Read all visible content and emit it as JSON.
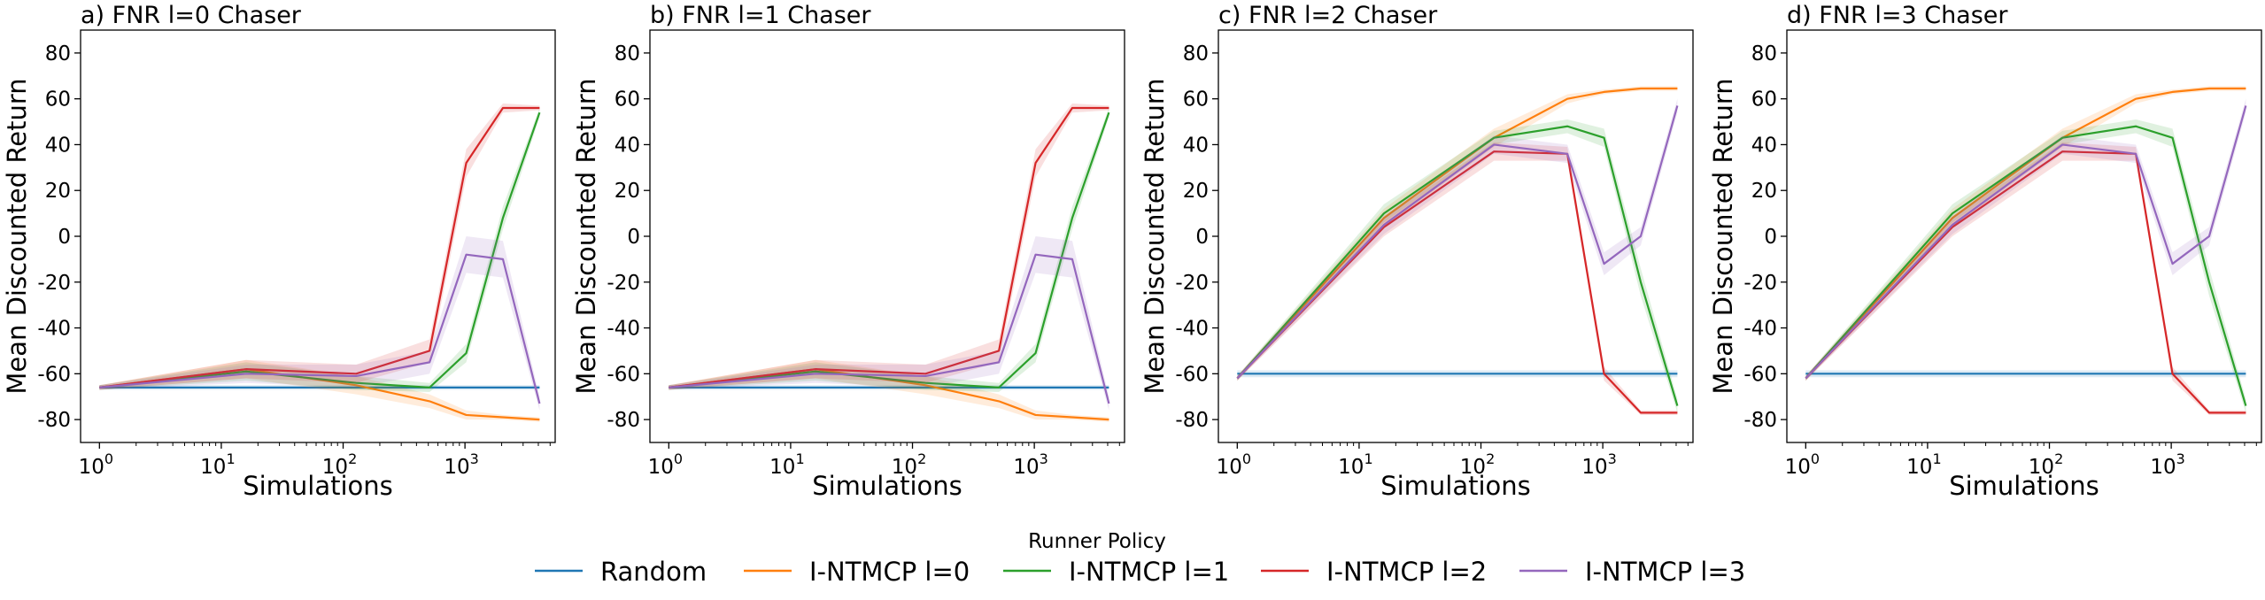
{
  "chart_data": {
    "type": "line",
    "xlabel": "Simulations",
    "ylabel": "Mean Discounted Return",
    "xscale": "log",
    "xlim": [
      0.7,
      5500
    ],
    "ylim": [
      -90,
      90
    ],
    "xticks": [
      {
        "value": 1,
        "base": "10",
        "exp": "0"
      },
      {
        "value": 10,
        "base": "10",
        "exp": "1"
      },
      {
        "value": 100,
        "base": "10",
        "exp": "2"
      },
      {
        "value": 1000,
        "base": "10",
        "exp": "3"
      }
    ],
    "yticks": [
      "-80",
      "-60",
      "-40",
      "-20",
      "0",
      "20",
      "40",
      "60",
      "80"
    ],
    "x": [
      1,
      16,
      128,
      512,
      1024,
      2048,
      4096
    ],
    "legend": {
      "title": "Runner Policy",
      "placement": "bottom-center",
      "entries": [
        "Random",
        "I-NTMCP l=0",
        "I-NTMCP l=1",
        "I-NTMCP l=2",
        "I-NTMCP l=3"
      ]
    },
    "colors": [
      "#1f77b4",
      "#ff7f0e",
      "#2ca02c",
      "#d62728",
      "#9467bd"
    ],
    "panels": [
      {
        "title": "a) FNR l=0 Chaser",
        "series": [
          {
            "name": "Random",
            "values": [
              -66,
              -66,
              -66,
              -66,
              -66,
              -66,
              -66
            ],
            "band": [
              1,
              1,
              1,
              1,
              1,
              1,
              1
            ]
          },
          {
            "name": "I-NTMCP l=0",
            "values": [
              -66,
              -58,
              -65,
              -72,
              -78,
              -79,
              -80
            ],
            "band": [
              1,
              4,
              4,
              3,
              2,
              1,
              1
            ]
          },
          {
            "name": "I-NTMCP l=1",
            "values": [
              -66,
              -59,
              -64,
              -66,
              -51,
              8,
              54
            ],
            "band": [
              1,
              4,
              3,
              2,
              4,
              5,
              2
            ]
          },
          {
            "name": "I-NTMCP l=2",
            "values": [
              -66,
              -58,
              -60,
              -50,
              32,
              56,
              56
            ],
            "band": [
              1,
              4,
              4,
              5,
              6,
              2,
              1
            ]
          },
          {
            "name": "I-NTMCP l=3",
            "values": [
              -66,
              -60,
              -61,
              -55,
              -8,
              -10,
              -73
            ],
            "band": [
              1,
              4,
              5,
              5,
              8,
              8,
              3
            ]
          }
        ]
      },
      {
        "title": "b) FNR l=1 Chaser",
        "series": [
          {
            "name": "Random",
            "values": [
              -66,
              -66,
              -66,
              -66,
              -66,
              -66,
              -66
            ],
            "band": [
              1,
              1,
              1,
              1,
              1,
              1,
              1
            ]
          },
          {
            "name": "I-NTMCP l=0",
            "values": [
              -66,
              -58,
              -65,
              -72,
              -78,
              -79,
              -80
            ],
            "band": [
              1,
              4,
              4,
              3,
              2,
              1,
              1
            ]
          },
          {
            "name": "I-NTMCP l=1",
            "values": [
              -66,
              -59,
              -64,
              -66,
              -51,
              8,
              54
            ],
            "band": [
              1,
              4,
              3,
              2,
              4,
              5,
              2
            ]
          },
          {
            "name": "I-NTMCP l=2",
            "values": [
              -66,
              -58,
              -60,
              -50,
              32,
              56,
              56
            ],
            "band": [
              1,
              4,
              4,
              5,
              6,
              2,
              1
            ]
          },
          {
            "name": "I-NTMCP l=3",
            "values": [
              -66,
              -60,
              -61,
              -55,
              -8,
              -10,
              -73
            ],
            "band": [
              1,
              4,
              5,
              5,
              8,
              8,
              3
            ]
          }
        ]
      },
      {
        "title": "c) FNR l=2 Chaser",
        "series": [
          {
            "name": "Random",
            "values": [
              -60,
              -60,
              -60,
              -60,
              -60,
              -60,
              -60
            ],
            "band": [
              1.5,
              1.5,
              1.5,
              1.5,
              1.5,
              1.5,
              1.5
            ]
          },
          {
            "name": "I-NTMCP l=0",
            "values": [
              -62,
              8,
              43,
              60,
              63,
              64.5,
              64.5
            ],
            "band": [
              1,
              4,
              4,
              2,
              1,
              1,
              1
            ]
          },
          {
            "name": "I-NTMCP l=1",
            "values": [
              -62,
              10,
              43,
              48,
              43,
              -20,
              -74
            ],
            "band": [
              1,
              4,
              3,
              3,
              4,
              6,
              3
            ]
          },
          {
            "name": "I-NTMCP l=2",
            "values": [
              -62,
              4,
              37,
              36,
              -60,
              -77,
              -77
            ],
            "band": [
              1,
              4,
              4,
              3,
              3,
              1,
              1
            ]
          },
          {
            "name": "I-NTMCP l=3",
            "values": [
              -62,
              5,
              40,
              36,
              -12,
              0,
              57
            ],
            "band": [
              1,
              4,
              4,
              4,
              5,
              4,
              3
            ]
          }
        ]
      },
      {
        "title": "d) FNR l=3 Chaser",
        "series": [
          {
            "name": "Random",
            "values": [
              -60,
              -60,
              -60,
              -60,
              -60,
              -60,
              -60
            ],
            "band": [
              1.5,
              1.5,
              1.5,
              1.5,
              1.5,
              1.5,
              1.5
            ]
          },
          {
            "name": "I-NTMCP l=0",
            "values": [
              -62,
              8,
              43,
              60,
              63,
              64.5,
              64.5
            ],
            "band": [
              1,
              4,
              4,
              2,
              1,
              1,
              1
            ]
          },
          {
            "name": "I-NTMCP l=1",
            "values": [
              -62,
              10,
              43,
              48,
              43,
              -20,
              -74
            ],
            "band": [
              1,
              4,
              3,
              3,
              4,
              6,
              3
            ]
          },
          {
            "name": "I-NTMCP l=2",
            "values": [
              -62,
              4,
              37,
              36,
              -60,
              -77,
              -77
            ],
            "band": [
              1,
              4,
              4,
              3,
              3,
              1,
              1
            ]
          },
          {
            "name": "I-NTMCP l=3",
            "values": [
              -62,
              5,
              40,
              36,
              -12,
              0,
              57
            ],
            "band": [
              1,
              4,
              4,
              4,
              5,
              4,
              3
            ]
          }
        ]
      }
    ]
  }
}
